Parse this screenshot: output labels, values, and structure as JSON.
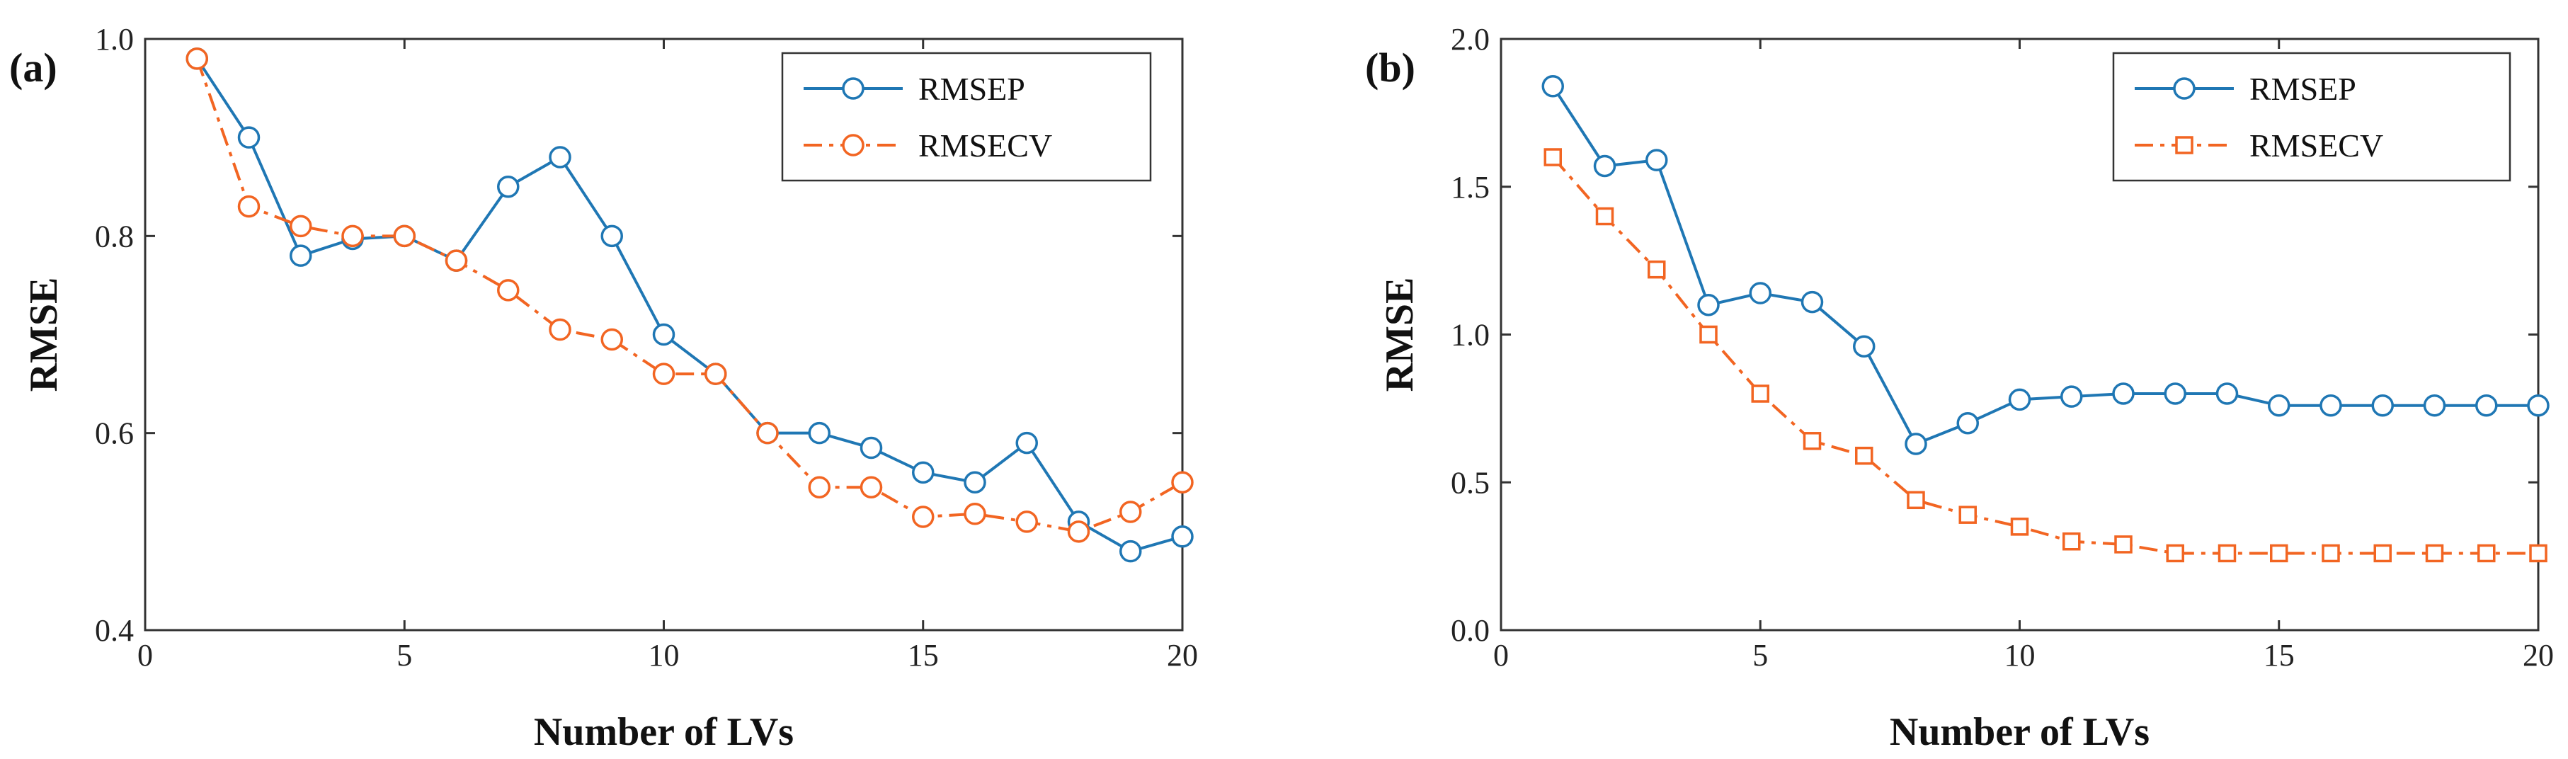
{
  "chart_data": [
    {
      "type": "line",
      "panel_label": "(a)",
      "xlabel": "Number of LVs",
      "ylabel": "RMSE",
      "xlim": [
        0,
        20
      ],
      "ylim": [
        0.4,
        1.0
      ],
      "xticks": [
        0,
        5,
        10,
        15,
        20
      ],
      "xtick_labels": [
        "0",
        "5",
        "10",
        "15",
        "20"
      ],
      "yticks": [
        0.4,
        0.6,
        0.8,
        1.0
      ],
      "ytick_labels": [
        "0.4",
        "0.6",
        "0.8",
        "1.0"
      ],
      "legend_position": "top-right",
      "x": [
        1,
        2,
        3,
        4,
        5,
        6,
        7,
        8,
        9,
        10,
        11,
        12,
        13,
        14,
        15,
        16,
        17,
        18,
        19,
        20
      ],
      "series": [
        {
          "name": "RMSEP",
          "color": "#1f77b4",
          "line_style": "solid",
          "marker": "circle",
          "values": [
            0.98,
            0.9,
            0.78,
            0.797,
            0.8,
            0.775,
            0.85,
            0.88,
            0.8,
            0.7,
            0.66,
            0.6,
            0.6,
            0.585,
            0.56,
            0.55,
            0.59,
            0.51,
            0.48,
            0.495
          ]
        },
        {
          "name": "RMSECV",
          "color": "#f26522",
          "line_style": "dashdot",
          "marker": "circle",
          "values": [
            0.98,
            0.83,
            0.81,
            0.8,
            0.8,
            0.775,
            0.745,
            0.705,
            0.695,
            0.66,
            0.66,
            0.6,
            0.545,
            0.545,
            0.515,
            0.518,
            0.51,
            0.5,
            0.52,
            0.55
          ]
        }
      ]
    },
    {
      "type": "line",
      "panel_label": "(b)",
      "xlabel": "Number of LVs",
      "ylabel": "RMSE",
      "xlim": [
        0,
        20
      ],
      "ylim": [
        0.0,
        2.0
      ],
      "xticks": [
        0,
        5,
        10,
        15,
        20
      ],
      "xtick_labels": [
        "0",
        "5",
        "10",
        "15",
        "20"
      ],
      "yticks": [
        0.0,
        0.5,
        1.0,
        1.5,
        2.0
      ],
      "ytick_labels": [
        "0.0",
        "0.5",
        "1.0",
        "1.5",
        "2.0"
      ],
      "legend_position": "top-right",
      "x": [
        1,
        2,
        3,
        4,
        5,
        6,
        7,
        8,
        9,
        10,
        11,
        12,
        13,
        14,
        15,
        16,
        17,
        18,
        19,
        20
      ],
      "series": [
        {
          "name": "RMSEP",
          "color": "#1f77b4",
          "line_style": "solid",
          "marker": "circle",
          "values": [
            1.84,
            1.57,
            1.59,
            1.1,
            1.14,
            1.11,
            0.96,
            0.63,
            0.7,
            0.78,
            0.79,
            0.8,
            0.8,
            0.8,
            0.76,
            0.76,
            0.76,
            0.76,
            0.76,
            0.76
          ]
        },
        {
          "name": "RMSECV",
          "color": "#f26522",
          "line_style": "dashdot",
          "marker": "square",
          "values": [
            1.6,
            1.4,
            1.22,
            1.0,
            0.8,
            0.64,
            0.59,
            0.44,
            0.39,
            0.35,
            0.3,
            0.29,
            0.26,
            0.26,
            0.26,
            0.26,
            0.26,
            0.26,
            0.26,
            0.26
          ]
        }
      ]
    }
  ]
}
